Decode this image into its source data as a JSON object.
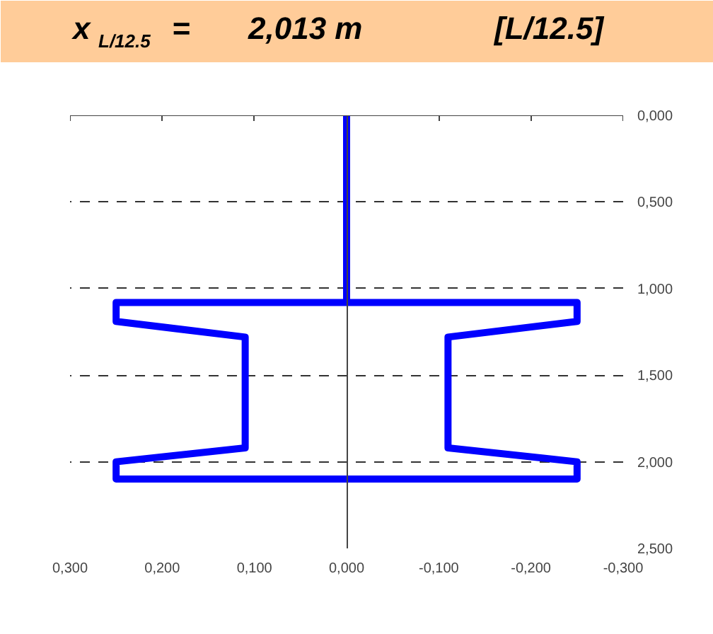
{
  "chart_data": {
    "type": "line",
    "title": "x$_{L/12.5}$ =     2,013  m     [L/12.5]",
    "series": [
      {
        "color": "#0000ff",
        "x": [
          0,
          0,
          0.25,
          0.25,
          0.11,
          0.11,
          0.25,
          0.25,
          -0.25,
          -0.25,
          -0.11,
          -0.11,
          -0.25,
          -0.25,
          0
        ],
        "values": [
          0,
          1.08,
          1.08,
          1.19,
          1.28,
          1.92,
          2.0,
          2.1,
          2.1,
          2.0,
          1.92,
          1.28,
          1.19,
          1.08,
          1.08
        ]
      }
    ],
    "xlim": [
      0.3,
      -0.3
    ],
    "ylim": [
      2.5,
      0
    ],
    "xticks": [
      {
        "value": 0.3,
        "label": "0,300"
      },
      {
        "value": 0.2,
        "label": "0,200"
      },
      {
        "value": 0.1,
        "label": "0,100"
      },
      {
        "value": 0,
        "label": "0,000"
      },
      {
        "value": -0.1,
        "label": "-0,100"
      },
      {
        "value": -0.2,
        "label": "-0,200"
      },
      {
        "value": -0.3,
        "label": "-0,300"
      }
    ],
    "yticks": [
      {
        "value": 0,
        "label": "0,000"
      },
      {
        "value": 0.5,
        "label": "0,500"
      },
      {
        "value": 1,
        "label": "1,000"
      },
      {
        "value": 1.5,
        "label": "1,500"
      },
      {
        "value": 2,
        "label": "2,000"
      },
      {
        "value": 2.5,
        "label": "2,500"
      }
    ],
    "grid": "y",
    "line_style": "solid"
  }
}
